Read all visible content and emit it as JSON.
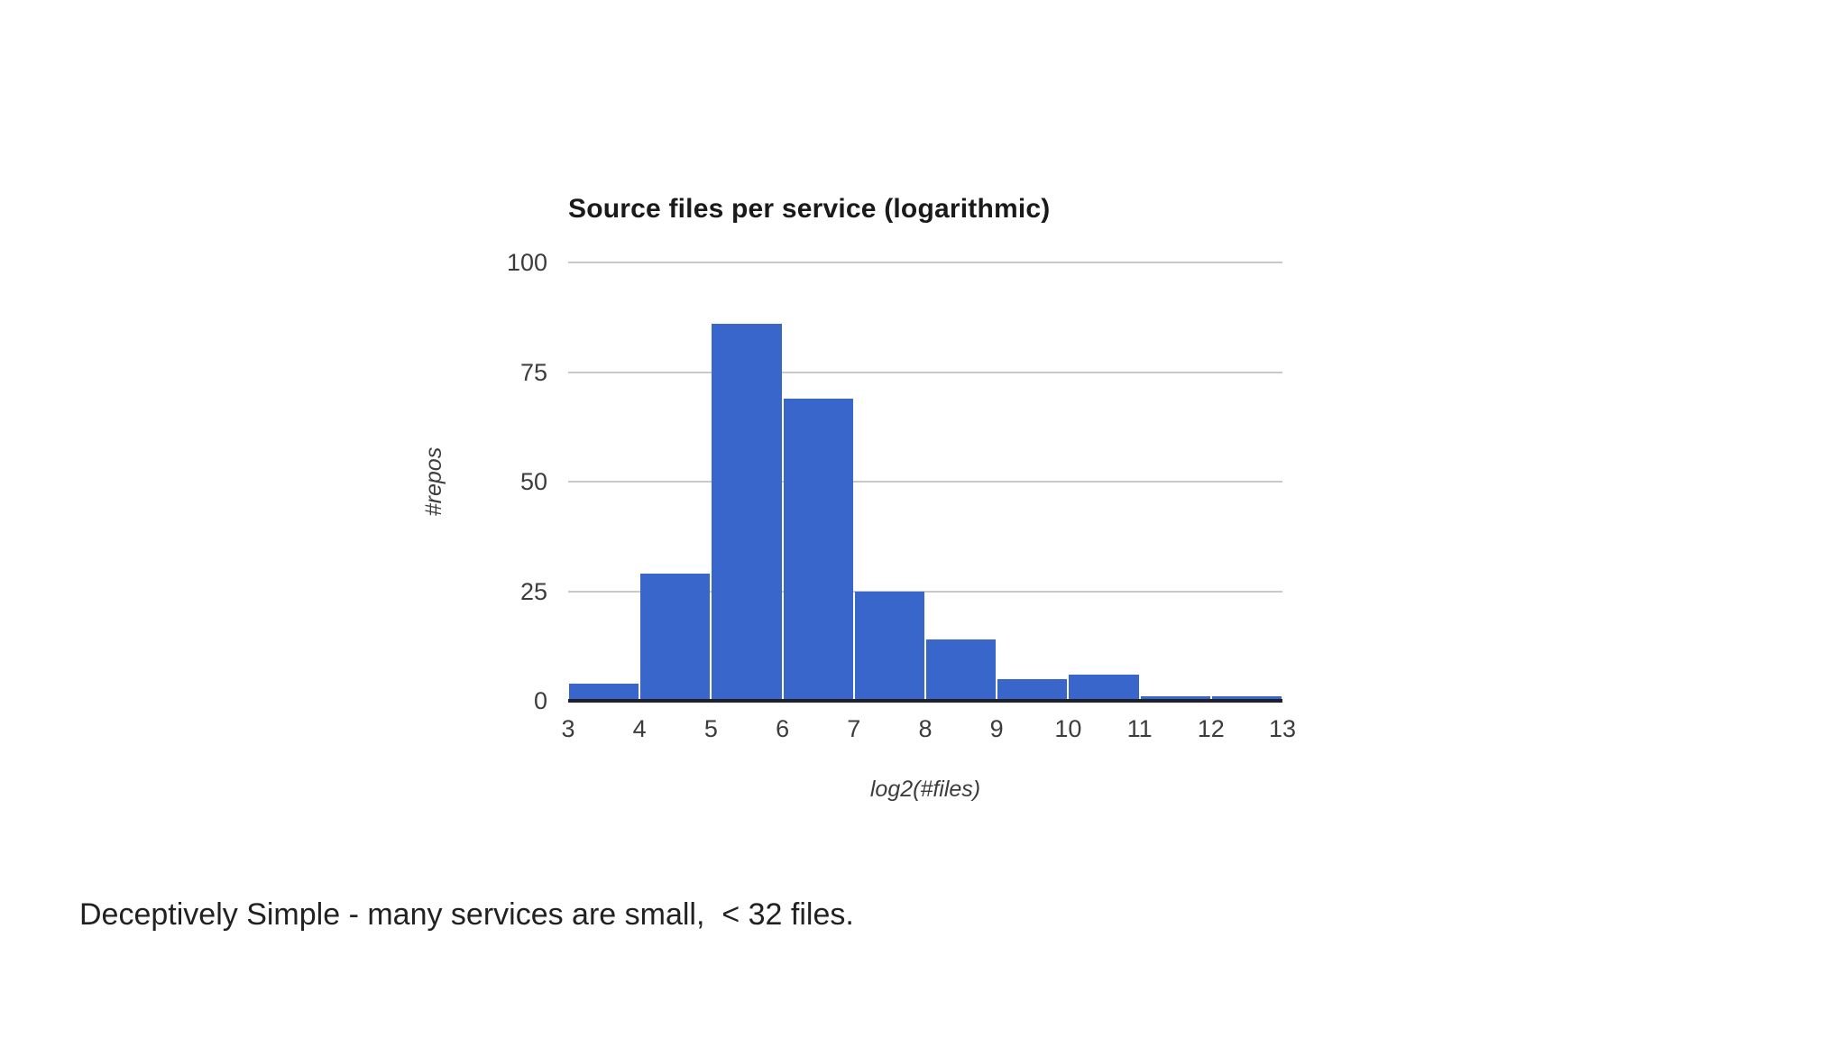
{
  "caption": {
    "text": "Deceptively Simple - many services are small,  < 32 files."
  },
  "chart_data": {
    "type": "bar",
    "subtype": "histogram",
    "title": "Source files per service (logarithmic)",
    "xlabel": "log2(#files)",
    "ylabel": "#repos",
    "x_ticks": [
      3,
      4,
      5,
      6,
      7,
      8,
      9,
      10,
      11,
      12,
      13
    ],
    "y_ticks": [
      0,
      25,
      50,
      75,
      100
    ],
    "xlim": [
      3,
      13
    ],
    "ylim": [
      0,
      100
    ],
    "bin_edges": [
      3,
      4,
      5,
      6,
      7,
      8,
      9,
      10,
      11,
      12,
      13
    ],
    "values": [
      4,
      29,
      86,
      69,
      25,
      14,
      5,
      6,
      1,
      1
    ],
    "bar_color": "#3866cb",
    "gridline_color": "#c9c9c9",
    "axis_line_color": "#20202a",
    "tick_text_color": "#3c3c3c",
    "title_color": "#1a1a1a",
    "grid": true,
    "legend": "none"
  }
}
